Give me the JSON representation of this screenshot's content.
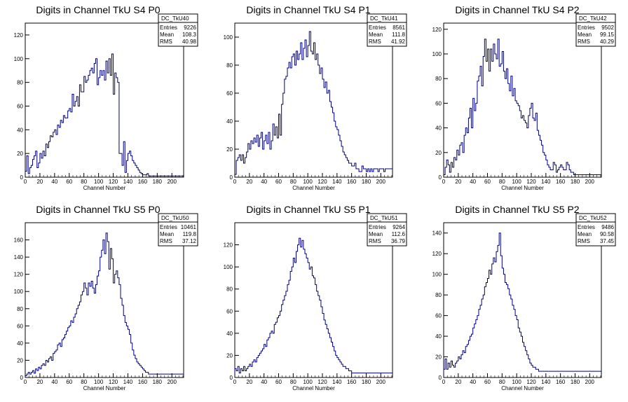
{
  "chart_data": [
    {
      "type": "bar",
      "title": "Digits in Channel TkU S4 P0",
      "xlabel": "Channel Number",
      "ylabel": "",
      "xlim": [
        0,
        216
      ],
      "ylim": [
        0,
        130
      ],
      "xticks": [
        0,
        20,
        40,
        60,
        80,
        100,
        120,
        140,
        160,
        180,
        200
      ],
      "yticks": [
        0,
        20,
        40,
        60,
        80,
        100,
        120
      ],
      "stats": {
        "name": "DC_TkU40",
        "entries": "9226",
        "mean": "108.3",
        "rms": "40.98"
      },
      "color": "#000080",
      "bin_width": 2,
      "values": [
        5,
        18,
        3,
        8,
        10,
        15,
        18,
        22,
        8,
        12,
        20,
        16,
        22,
        18,
        28,
        25,
        30,
        35,
        34,
        38,
        40,
        36,
        44,
        42,
        48,
        46,
        52,
        50,
        50,
        56,
        58,
        55,
        70,
        60,
        64,
        68,
        60,
        78,
        72,
        72,
        85,
        80,
        82,
        86,
        90,
        92,
        88,
        96,
        100,
        78,
        84,
        90,
        86,
        90,
        82,
        98,
        88,
        100,
        86,
        104,
        70,
        88,
        84,
        80,
        20,
        20,
        10,
        30,
        4,
        14,
        20,
        22,
        18,
        14,
        12,
        10,
        8,
        6,
        4,
        3,
        2,
        2,
        2,
        3,
        1,
        1,
        1,
        1,
        1,
        1,
        1,
        1,
        1,
        1,
        1,
        1,
        1,
        1,
        1,
        1,
        1,
        1,
        1,
        1,
        1,
        1,
        1,
        1
      ]
    },
    {
      "type": "bar",
      "title": "Digits in Channel TkU S4 P1",
      "xlabel": "Channel Number",
      "ylabel": "",
      "xlim": [
        0,
        216
      ],
      "ylim": [
        0,
        110
      ],
      "xticks": [
        0,
        20,
        40,
        60,
        80,
        100,
        120,
        140,
        160,
        180,
        200
      ],
      "yticks": [
        0,
        20,
        40,
        60,
        80,
        100
      ],
      "stats": {
        "name": "DC_TkU41",
        "entries": "8561",
        "mean": "111.8",
        "rms": "41.92"
      },
      "color": "#000080",
      "bin_width": 2,
      "values": [
        2,
        12,
        14,
        16,
        12,
        16,
        10,
        14,
        18,
        24,
        20,
        26,
        24,
        28,
        25,
        30,
        22,
        28,
        32,
        20,
        26,
        30,
        24,
        32,
        20,
        26,
        38,
        30,
        36,
        28,
        45,
        30,
        52,
        60,
        70,
        72,
        78,
        82,
        78,
        86,
        88,
        80,
        90,
        84,
        88,
        96,
        84,
        92,
        98,
        86,
        94,
        104,
        90,
        88,
        96,
        84,
        88,
        80,
        74,
        78,
        70,
        64,
        68,
        60,
        62,
        54,
        50,
        46,
        40,
        36,
        34,
        30,
        26,
        22,
        18,
        16,
        14,
        12,
        10,
        10,
        8,
        8,
        10,
        6,
        6,
        4,
        4,
        8,
        6,
        6,
        4,
        6,
        4,
        6,
        4,
        6,
        6,
        6,
        4,
        6,
        6,
        6,
        4,
        6,
        6,
        6,
        6,
        6
      ]
    },
    {
      "type": "bar",
      "title": "Digits in Channel TkU S4 P2",
      "xlabel": "Channel Number",
      "ylabel": "",
      "xlim": [
        0,
        216
      ],
      "ylim": [
        0,
        125
      ],
      "xticks": [
        0,
        20,
        40,
        60,
        80,
        100,
        120,
        140,
        160,
        180,
        200
      ],
      "yticks": [
        0,
        20,
        40,
        60,
        80,
        100,
        120
      ],
      "stats": {
        "name": "DC_TkU42",
        "entries": "9502",
        "mean": "99.15",
        "rms": "40.29"
      },
      "color": "#000080",
      "bin_width": 2,
      "values": [
        2,
        8,
        14,
        10,
        4,
        12,
        8,
        16,
        14,
        22,
        18,
        26,
        28,
        20,
        34,
        40,
        36,
        48,
        56,
        40,
        64,
        54,
        60,
        78,
        82,
        90,
        74,
        98,
        112,
        94,
        104,
        86,
        104,
        94,
        108,
        100,
        96,
        112,
        90,
        92,
        102,
        86,
        80,
        88,
        76,
        70,
        82,
        66,
        72,
        62,
        60,
        58,
        54,
        48,
        50,
        46,
        44,
        40,
        50,
        56,
        60,
        48,
        46,
        52,
        38,
        34,
        30,
        26,
        20,
        18,
        14,
        10,
        8,
        6,
        6,
        12,
        10,
        4,
        6,
        8,
        10,
        8,
        6,
        6,
        12,
        10,
        6,
        4,
        4,
        2,
        2,
        2,
        2,
        2,
        2,
        2,
        2,
        2,
        2,
        2,
        2,
        2,
        2,
        2,
        2,
        2,
        2,
        2
      ]
    },
    {
      "type": "bar",
      "title": "Digits in Channel TkU S5 P0",
      "xlabel": "Channel Number",
      "ylabel": "",
      "xlim": [
        0,
        216
      ],
      "ylim": [
        0,
        180
      ],
      "xticks": [
        0,
        20,
        40,
        60,
        80,
        100,
        120,
        140,
        160,
        180,
        200
      ],
      "yticks": [
        0,
        20,
        40,
        60,
        80,
        100,
        120,
        140,
        160
      ],
      "stats": {
        "name": "DC_TkU50",
        "entries": "10461",
        "mean": "119.8",
        "rms": "37.12"
      },
      "color": "#000080",
      "bin_width": 2,
      "values": [
        2,
        4,
        6,
        4,
        6,
        8,
        5,
        10,
        8,
        12,
        10,
        14,
        16,
        14,
        20,
        18,
        22,
        24,
        20,
        28,
        30,
        32,
        38,
        40,
        36,
        44,
        46,
        50,
        54,
        58,
        60,
        66,
        64,
        70,
        74,
        80,
        84,
        88,
        96,
        100,
        110,
        104,
        96,
        110,
        106,
        112,
        104,
        98,
        108,
        118,
        124,
        140,
        148,
        160,
        144,
        168,
        158,
        126,
        150,
        138,
        110,
        120,
        124,
        116,
        108,
        92,
        84,
        72,
        64,
        60,
        56,
        50,
        40,
        32,
        26,
        22,
        18,
        16,
        14,
        12,
        10,
        8,
        6,
        6,
        4,
        4,
        4,
        4,
        4,
        4,
        4,
        4,
        4,
        4,
        4,
        4,
        4,
        4,
        4,
        4,
        4,
        4,
        4,
        4,
        4,
        4,
        4,
        4
      ]
    },
    {
      "type": "bar",
      "title": "Digits in Channel TkU S5 P1",
      "xlabel": "Channel Number",
      "ylabel": "",
      "xlim": [
        0,
        216
      ],
      "ylim": [
        0,
        140
      ],
      "xticks": [
        0,
        20,
        40,
        60,
        80,
        100,
        120,
        140,
        160,
        180,
        200
      ],
      "yticks": [
        0,
        20,
        40,
        60,
        80,
        100,
        120
      ],
      "stats": {
        "name": "DC_TkU51",
        "entries": "9264",
        "mean": "112.6",
        "rms": "36.79"
      },
      "color": "#000080",
      "bin_width": 2,
      "values": [
        8,
        6,
        10,
        4,
        8,
        6,
        10,
        6,
        8,
        10,
        12,
        10,
        14,
        16,
        14,
        18,
        20,
        22,
        24,
        26,
        30,
        28,
        34,
        36,
        40,
        42,
        40,
        48,
        50,
        54,
        56,
        60,
        66,
        70,
        74,
        78,
        84,
        88,
        96,
        100,
        108,
        104,
        114,
        120,
        126,
        118,
        124,
        116,
        112,
        108,
        104,
        98,
        100,
        92,
        90,
        84,
        78,
        74,
        70,
        64,
        58,
        52,
        48,
        44,
        40,
        36,
        32,
        28,
        24,
        20,
        18,
        16,
        14,
        12,
        10,
        10,
        8,
        8,
        6,
        6,
        4,
        4,
        4,
        4,
        4,
        4,
        4,
        4,
        4,
        4,
        4,
        4,
        4,
        4,
        4,
        4,
        4,
        4,
        4,
        4,
        4,
        4,
        4,
        4,
        4,
        4,
        4,
        4
      ]
    },
    {
      "type": "bar",
      "title": "Digits in Channel TkU S5 P2",
      "xlabel": "Channel Number",
      "ylabel": "",
      "xlim": [
        0,
        216
      ],
      "ylim": [
        0,
        150
      ],
      "xticks": [
        0,
        20,
        40,
        60,
        80,
        100,
        120,
        140,
        160,
        180,
        200
      ],
      "yticks": [
        0,
        20,
        40,
        60,
        80,
        100,
        120,
        140
      ],
      "stats": {
        "name": "DC_TkU52",
        "entries": "9486",
        "mean": "90.58",
        "rms": "37.45"
      },
      "color": "#000080",
      "bin_width": 2,
      "values": [
        8,
        18,
        8,
        14,
        10,
        16,
        12,
        10,
        14,
        16,
        20,
        18,
        22,
        26,
        24,
        30,
        32,
        36,
        40,
        42,
        48,
        52,
        56,
        60,
        66,
        70,
        76,
        80,
        88,
        92,
        96,
        104,
        100,
        110,
        116,
        112,
        122,
        128,
        140,
        118,
        106,
        100,
        92,
        90,
        86,
        80,
        76,
        70,
        66,
        60,
        56,
        48,
        44,
        40,
        34,
        30,
        26,
        22,
        18,
        14,
        12,
        10,
        10,
        8,
        8,
        6,
        6,
        6,
        6,
        6,
        6,
        6,
        6,
        6,
        6,
        6,
        6,
        6,
        6,
        6,
        6,
        6,
        6,
        6,
        6,
        6,
        6,
        6,
        6,
        6,
        6,
        6,
        6,
        6,
        6,
        6,
        6,
        6,
        6,
        6,
        6,
        6,
        6,
        6,
        6,
        6,
        6,
        6
      ]
    }
  ]
}
